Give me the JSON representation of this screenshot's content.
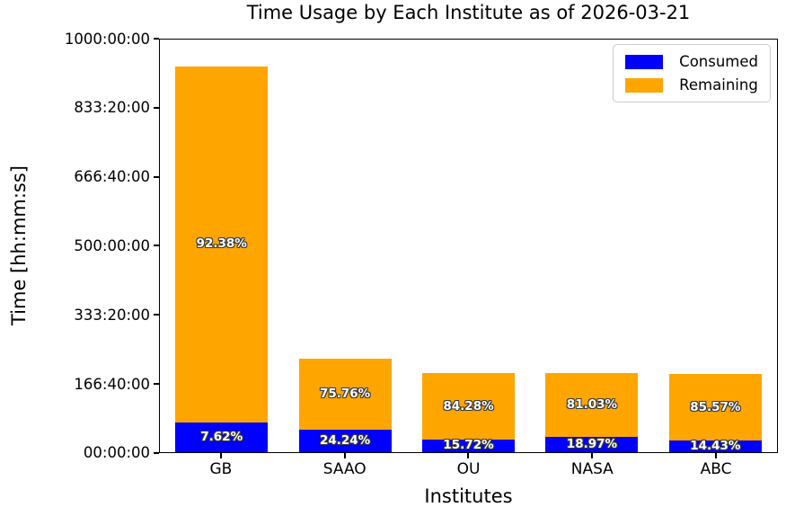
{
  "title": "Time Usage by Each Institute as of 2026-03-21",
  "axes": {
    "y_label": "Time [hh:mm:ss]",
    "x_label": "Institutes",
    "y_ticks": [
      "1000:00:00",
      "833:20:00",
      "666:40:00",
      "500:00:00",
      "333:20:00",
      "166:40:00",
      "00:00:00"
    ]
  },
  "legend": {
    "items": [
      {
        "label": "Consumed",
        "color": "#0000ff"
      },
      {
        "label": "Remaining",
        "color": "#ffa500"
      }
    ]
  },
  "chart_data": {
    "type": "bar",
    "stacked": true,
    "title": "Time Usage by Each Institute as of 2026-03-21",
    "xlabel": "Institutes",
    "ylabel": "Time [hh:mm:ss]",
    "ylim_hours": [
      0,
      1000
    ],
    "grid": false,
    "legend_position": "upper right",
    "categories": [
      "GB",
      "SAAO",
      "OU",
      "NASA",
      "ABC"
    ],
    "total_hours": [
      935,
      226,
      191,
      191,
      189
    ],
    "series": [
      {
        "name": "Consumed",
        "color": "#0000ff",
        "values_pct": [
          7.62,
          24.24,
          15.72,
          18.97,
          14.43
        ]
      },
      {
        "name": "Remaining",
        "color": "#ffa500",
        "values_pct": [
          92.38,
          75.76,
          84.28,
          81.03,
          85.57
        ]
      }
    ],
    "labels": {
      "consumed": [
        "7.62%",
        "24.24%",
        "15.72%",
        "18.97%",
        "14.43%"
      ],
      "remaining": [
        "92.38%",
        "75.76%",
        "84.28%",
        "81.03%",
        "85.57%"
      ]
    }
  }
}
